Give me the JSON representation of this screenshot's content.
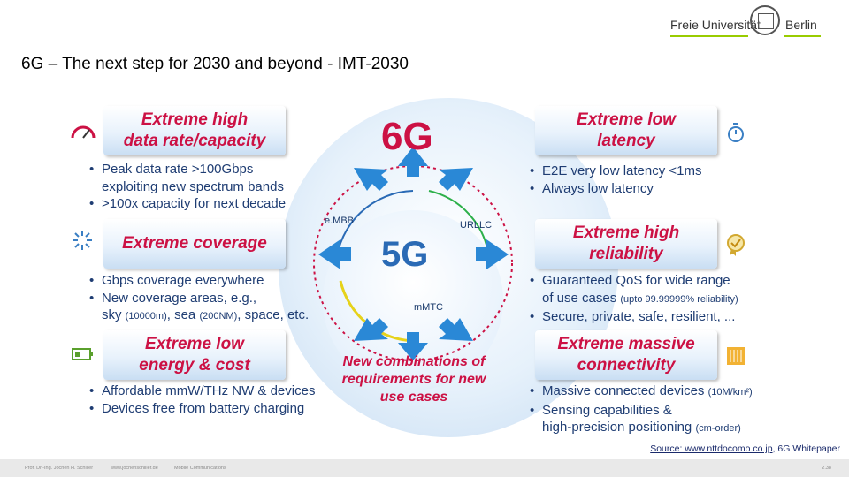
{
  "slide": {
    "title": "6G – The next step for 2030 and beyond - IMT-2030",
    "logo": {
      "left": "Freie Universität",
      "right": "Berlin"
    }
  },
  "diagram": {
    "center_6g": "6G",
    "center_5g": "5G",
    "ring_labels": {
      "embb": "e.MBB",
      "urllc": "URLLC",
      "mmtc": "mMTC"
    },
    "new_combinations": "New combinations of requirements for new use cases",
    "boxes": [
      {
        "title_l1": "Extreme high",
        "title_l2": "data rate/capacity",
        "bullets": [
          "Peak data rate >100Gbps",
          "exploiting new spectrum bands",
          ">100x capacity for next decade"
        ]
      },
      {
        "title_l1": "Extreme coverage",
        "title_l2": "",
        "bullets": [
          "Gbps coverage everywhere",
          "New coverage areas, e.g.,"
        ],
        "extra": {
          "a": "sky",
          "a_s": "(10000m)",
          "b": ", sea",
          "b_s": "(200NM)",
          "c": ", space, etc."
        }
      },
      {
        "title_l1": "Extreme low",
        "title_l2": "energy & cost",
        "bullets": [
          "Affordable mmW/THz NW & devices",
          "Devices free from battery charging"
        ]
      },
      {
        "title_l1": "Extreme low",
        "title_l2": "latency",
        "bullets": [
          "E2E very low latency <1ms",
          "Always low latency"
        ]
      },
      {
        "title_l1": "Extreme high",
        "title_l2": "reliability",
        "bullets": [
          "Guaranteed QoS for wide range"
        ],
        "extra": {
          "a": "of use cases",
          "a_s": "(upto 99.99999% reliability)",
          "b": "Secure, private, safe, resilient, ..."
        }
      },
      {
        "title_l1": "Extreme massive",
        "title_l2": "connectivity",
        "bullets_mixed": [
          {
            "t": "Massive connected devices",
            "s": "(10M/km²)"
          },
          {
            "t": "Sensing capabilities &",
            "s": ""
          },
          {
            "t": "high-precision positioning",
            "s": "(cm-order)"
          }
        ]
      }
    ]
  },
  "source": {
    "link": "Source: www.nttdocomo.co.jp",
    "rest": ", 6G Whitepaper"
  },
  "footer": {
    "author": "Prof. Dr.-Ing. Jochen H. Schiller",
    "site": "www.jochenschiller.de",
    "course": "Mobile Communications",
    "page": "2.38"
  },
  "icons": [
    "gauge-icon",
    "coverage-burst-icon",
    "battery-icon",
    "stopwatch-icon",
    "badge-check-icon",
    "connectivity-grid-icon"
  ]
}
